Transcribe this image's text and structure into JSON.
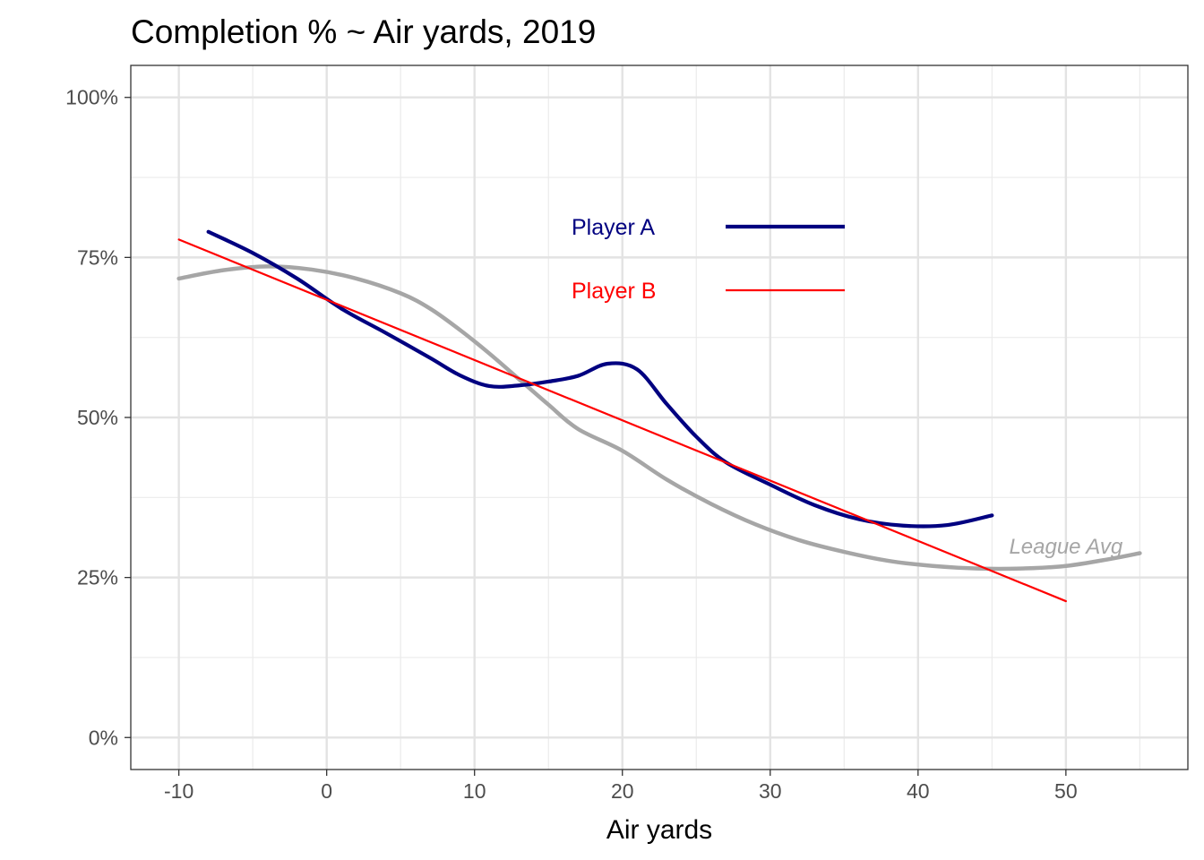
{
  "chart_data": {
    "type": "line",
    "title": "Completion % ~ Air yards, 2019",
    "xlabel": "Air yards",
    "ylabel": "",
    "xlim": [
      -13.25,
      58.25
    ],
    "ylim": [
      -0.05,
      1.05
    ],
    "x_ticks": [
      -10,
      0,
      10,
      20,
      30,
      40,
      50
    ],
    "x_tick_labels": [
      "-10",
      "0",
      "10",
      "20",
      "30",
      "40",
      "50"
    ],
    "y_ticks": [
      0,
      0.25,
      0.5,
      0.75,
      1.0
    ],
    "y_tick_labels": [
      "0%",
      "25%",
      "50%",
      "75%",
      "100%"
    ],
    "grid": true,
    "legend_position": "inside-top-center",
    "series": [
      {
        "name": "League Avg",
        "color": "#a6a6a6",
        "x": [
          -10,
          -7,
          -4,
          -1,
          2,
          5,
          7,
          9,
          11,
          13,
          15,
          17,
          20,
          23,
          26,
          29,
          32,
          35,
          38,
          41,
          44,
          47,
          50,
          53,
          55
        ],
        "y": [
          0.717,
          0.73,
          0.736,
          0.731,
          0.717,
          0.694,
          0.67,
          0.637,
          0.6,
          0.56,
          0.52,
          0.482,
          0.448,
          0.403,
          0.365,
          0.333,
          0.308,
          0.29,
          0.276,
          0.268,
          0.264,
          0.264,
          0.268,
          0.279,
          0.288
        ]
      },
      {
        "name": "Player A",
        "color": "#000080",
        "x": [
          -8,
          -5,
          -2,
          1,
          4,
          7,
          9,
          11,
          13,
          15,
          17,
          19,
          21,
          23,
          25,
          27,
          30,
          33,
          36,
          39,
          42,
          45
        ],
        "y": [
          0.79,
          0.757,
          0.717,
          0.67,
          0.632,
          0.593,
          0.566,
          0.549,
          0.55,
          0.556,
          0.565,
          0.584,
          0.575,
          0.521,
          0.47,
          0.43,
          0.395,
          0.363,
          0.341,
          0.331,
          0.332,
          0.347
        ]
      },
      {
        "name": "Player B",
        "color": "#ff0000",
        "x": [
          -10,
          50
        ],
        "y": [
          0.778,
          0.213
        ]
      }
    ],
    "annotations": [
      {
        "text": "League Avg",
        "x": 50,
        "y": 0.3,
        "color": "#a6a6a6"
      }
    ]
  }
}
